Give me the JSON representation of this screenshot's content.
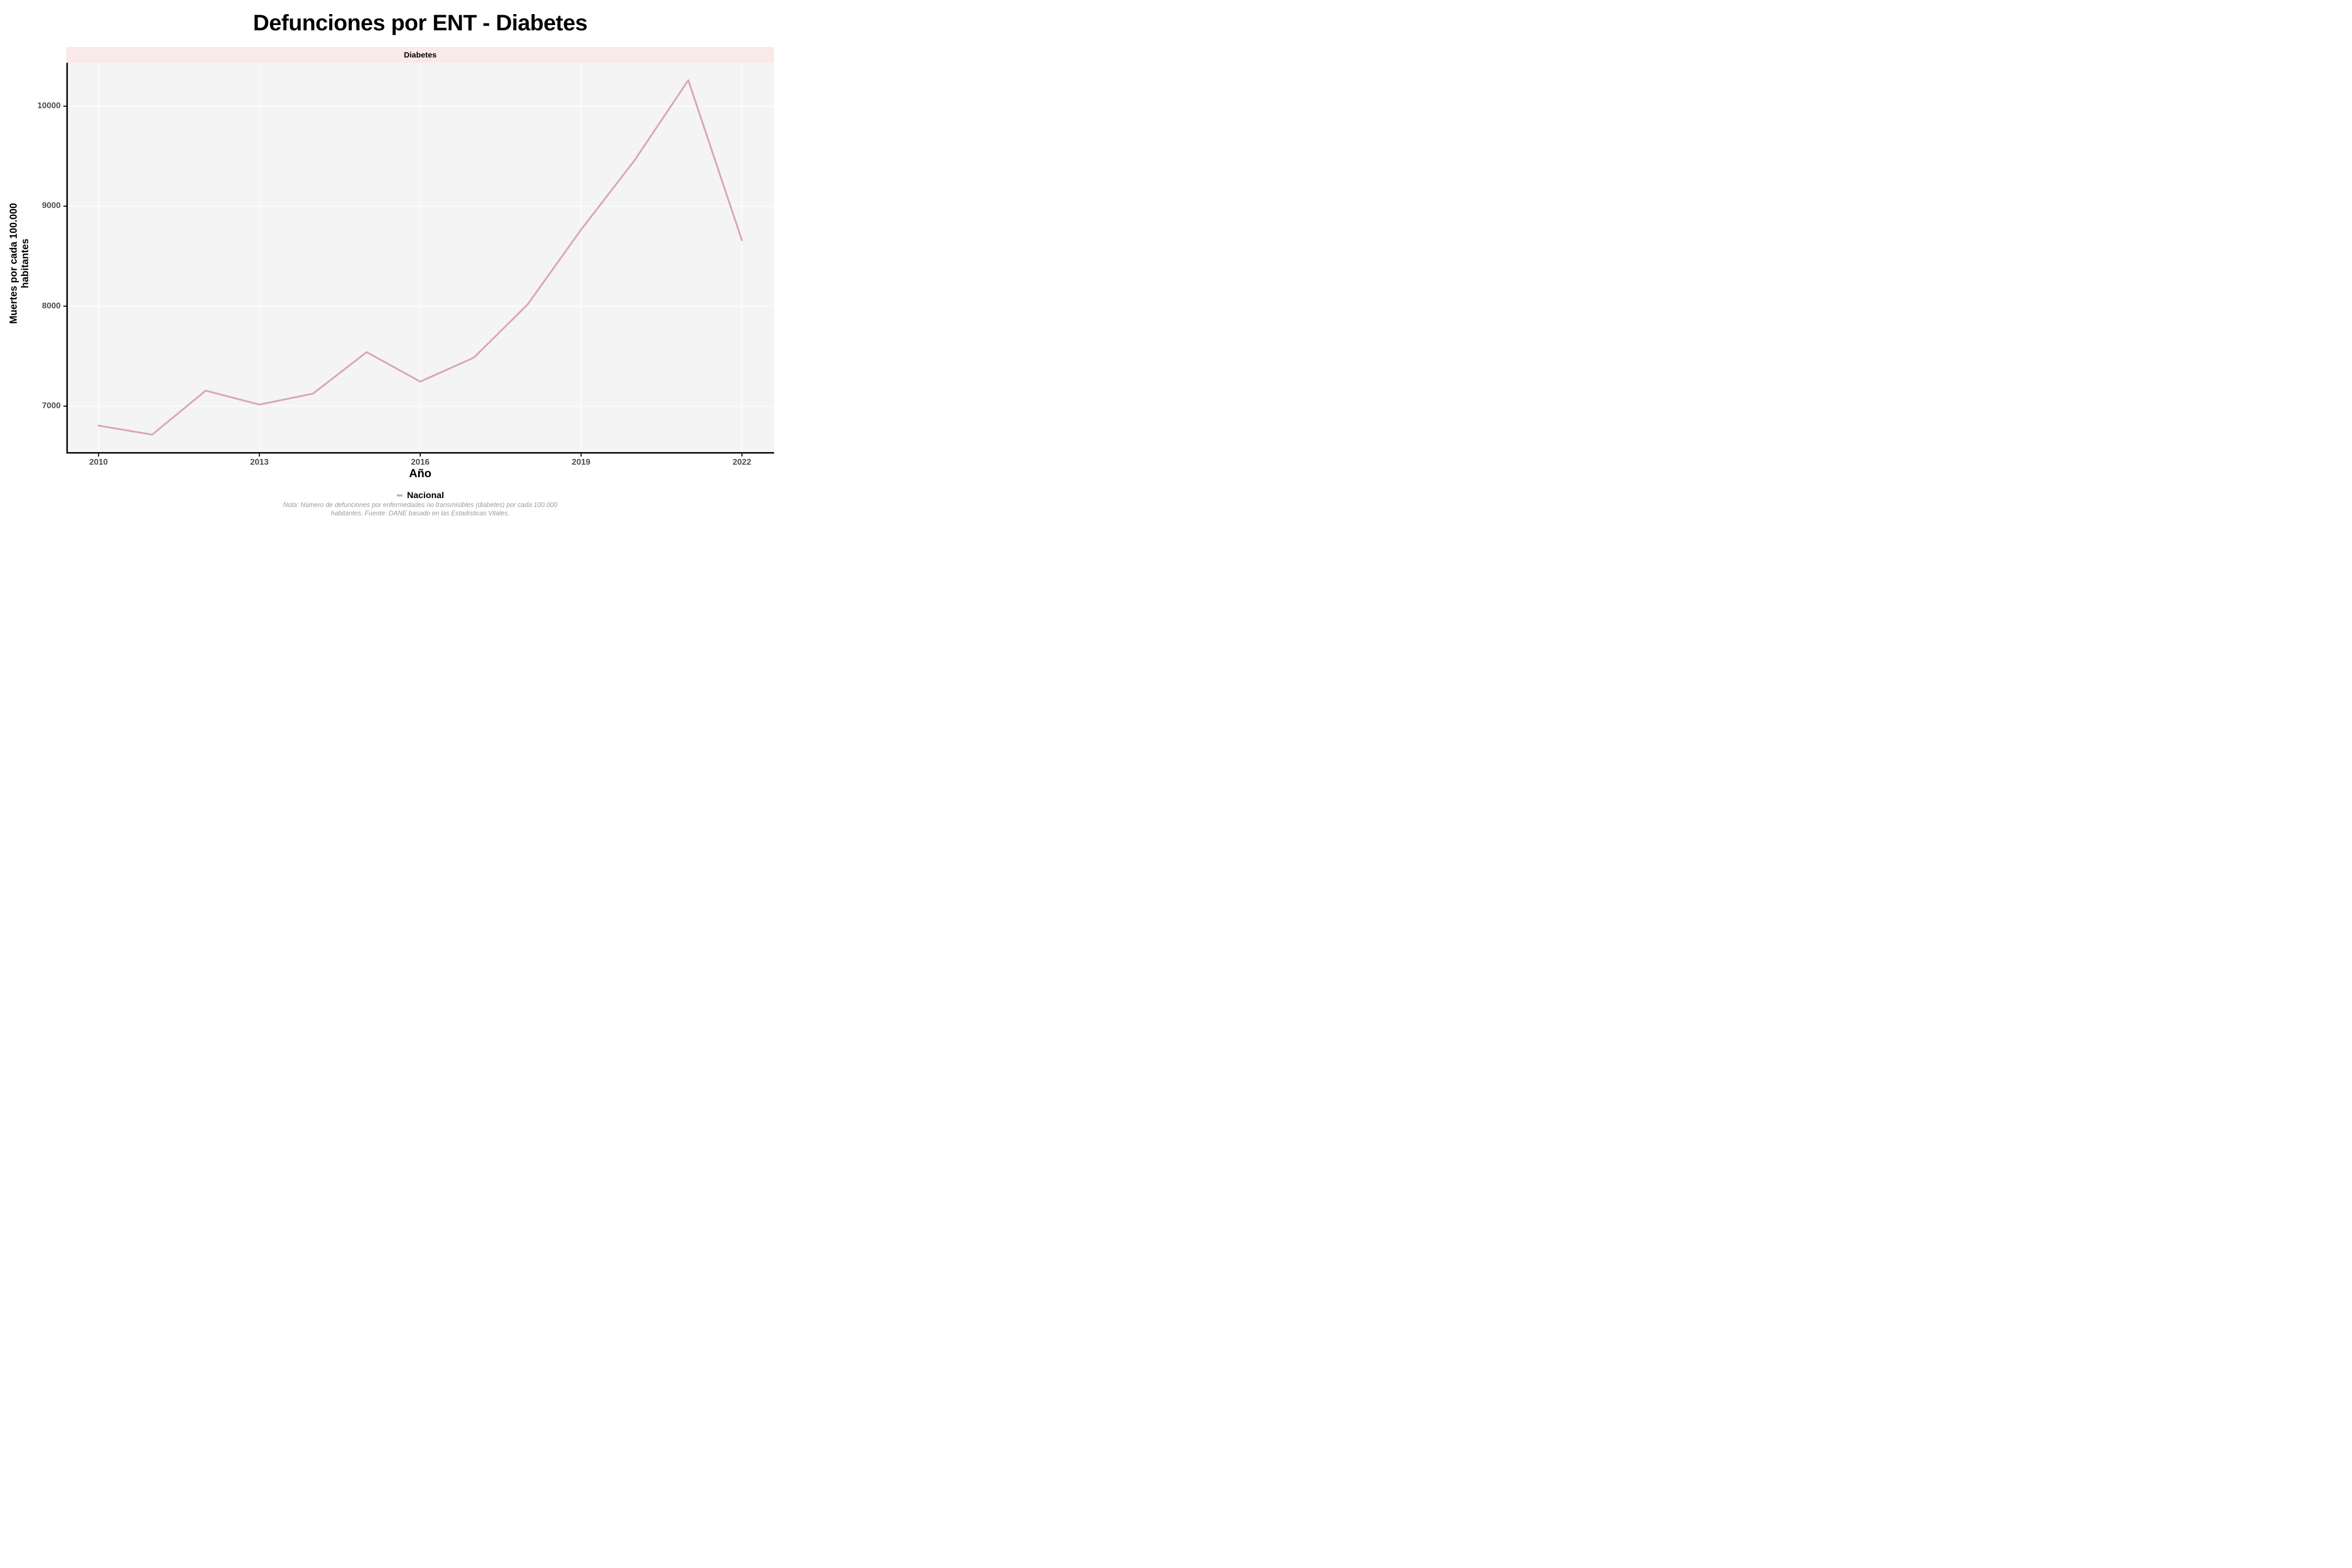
{
  "title": "Defunciones por ENT - Diabetes",
  "facet": {
    "label": "Diabetes"
  },
  "axes": {
    "x_title": "Año",
    "y_title_line1": "Muertes por cada 100.000",
    "y_title_line2": "habitantes"
  },
  "legend": {
    "label": "Nacional"
  },
  "note": {
    "line1": "Nota: Número de defunciones por enfermedades no transmisibles (diabetes) por cada 100.000",
    "line2": "habitantes. Fuente: DANE basado en las Estadísticas Vitales."
  },
  "colors": {
    "line": "#d9a7b4",
    "strip_bg": "#f9e9e9",
    "panel_bg": "#f4f4f4",
    "grid": "#ffffff",
    "axis": "#000000",
    "tick_label": "#4d4d4d",
    "note_text": "#9b9b9b"
  },
  "chart_data": {
    "type": "line",
    "title": "Defunciones por ENT - Diabetes",
    "facet_label": "Diabetes",
    "xlabel": "Año",
    "ylabel": "Muertes por cada 100.000 habitantes",
    "categories": [
      2010,
      2011,
      2012,
      2013,
      2014,
      2015,
      2016,
      2017,
      2018,
      2019,
      2020,
      2021,
      2022
    ],
    "series": [
      {
        "name": "Nacional",
        "values": [
          6805,
          6715,
          7155,
          7015,
          7125,
          7540,
          7245,
          7485,
          8015,
          8765,
          9460,
          10260,
          8660
        ]
      }
    ],
    "x_ticks": [
      2010,
      2013,
      2016,
      2019,
      2022
    ],
    "y_ticks": [
      7000,
      8000,
      9000,
      10000
    ],
    "x_domain": [
      2009.4,
      2022.6
    ],
    "y_domain": [
      6540,
      10435
    ],
    "grid": true,
    "legend_position": "bottom",
    "note": "Nota: Número de defunciones por enfermedades no transmisibles (diabetes) por cada 100.000 habitantes. Fuente: DANE basado en las Estadísticas Vitales."
  }
}
